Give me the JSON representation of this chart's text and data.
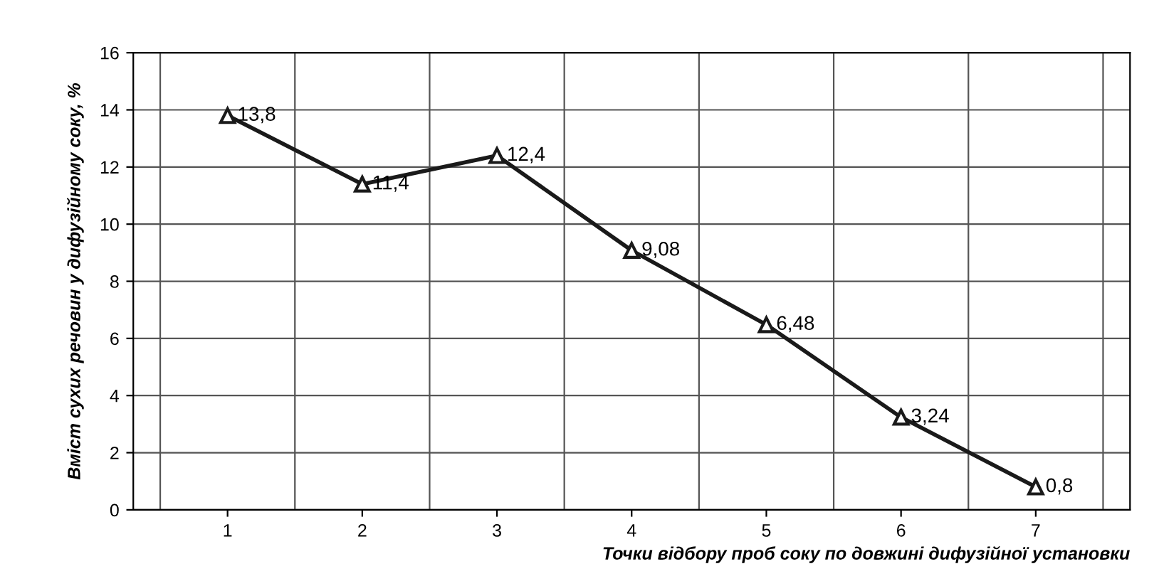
{
  "chart_data": {
    "type": "line",
    "xlabel": "Точки відбору проб соку по довжині дифузійної установки",
    "ylabel": "Вміст сухих речовин у дифузійному соку, %",
    "categories": [
      "1",
      "2",
      "3",
      "4",
      "5",
      "6",
      "7"
    ],
    "series": [
      {
        "color": "#1a1a1a",
        "values": [
          13.8,
          11.4,
          12.4,
          9.08,
          6.48,
          3.24,
          0.8
        ],
        "value_labels": [
          "13,8",
          "11,4",
          "12,4",
          "9,08",
          "6,48",
          "3,24",
          "0,8"
        ]
      }
    ],
    "ylim": [
      0,
      16
    ],
    "yticks": [
      0,
      2,
      4,
      6,
      8,
      10,
      12,
      14,
      16
    ],
    "grid": true,
    "marker": "triangle",
    "line_style": "solid"
  }
}
